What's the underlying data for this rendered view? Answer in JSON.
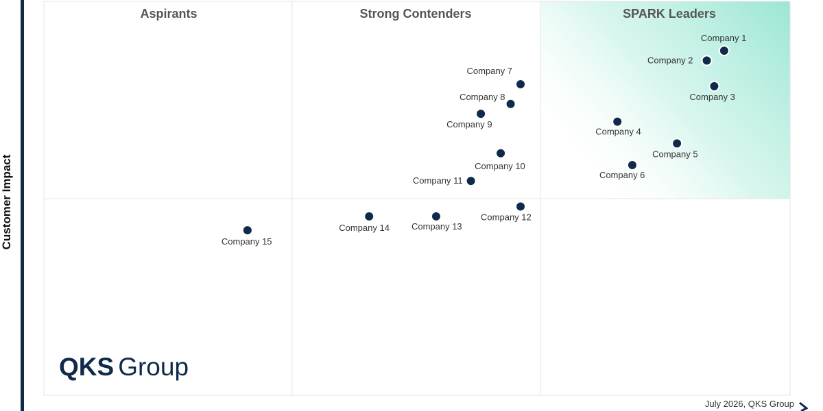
{
  "chart_data": {
    "type": "scatter",
    "ylabel": "Customer Impact",
    "quadrants": [
      "Aspirants",
      "Strong Contenders",
      "SPARK Leaders"
    ],
    "xlim": [
      0,
      3
    ],
    "ylim": [
      0,
      2
    ],
    "points": [
      {
        "label": "Company 1",
        "x": 2.74,
        "y": 1.75
      },
      {
        "label": "Company 2",
        "x": 2.67,
        "y": 1.7
      },
      {
        "label": "Company 3",
        "x": 2.7,
        "y": 1.57
      },
      {
        "label": "Company 4",
        "x": 2.31,
        "y": 1.39
      },
      {
        "label": "Company 5",
        "x": 2.55,
        "y": 1.28
      },
      {
        "label": "Company 6",
        "x": 2.37,
        "y": 1.17
      },
      {
        "label": "Company 7",
        "x": 1.92,
        "y": 1.58
      },
      {
        "label": "Company 8",
        "x": 1.88,
        "y": 1.48
      },
      {
        "label": "Company 9",
        "x": 1.76,
        "y": 1.43
      },
      {
        "label": "Company 10",
        "x": 1.84,
        "y": 1.23
      },
      {
        "label": "Company 11",
        "x": 1.72,
        "y": 1.09
      },
      {
        "label": "Company 12",
        "x": 1.92,
        "y": 0.96
      },
      {
        "label": "Company 13",
        "x": 1.58,
        "y": 0.91
      },
      {
        "label": "Company 14",
        "x": 1.31,
        "y": 0.91
      },
      {
        "label": "Company 15",
        "x": 0.82,
        "y": 0.84
      }
    ],
    "colors": {
      "point": "#0f2a4a",
      "leader_gradient": "#8fe3cf",
      "grid": "#e4e4e4"
    }
  },
  "branding": {
    "logo_bold": "QKS",
    "logo_light": "Group"
  },
  "footer": "July 2026, QKS Group"
}
